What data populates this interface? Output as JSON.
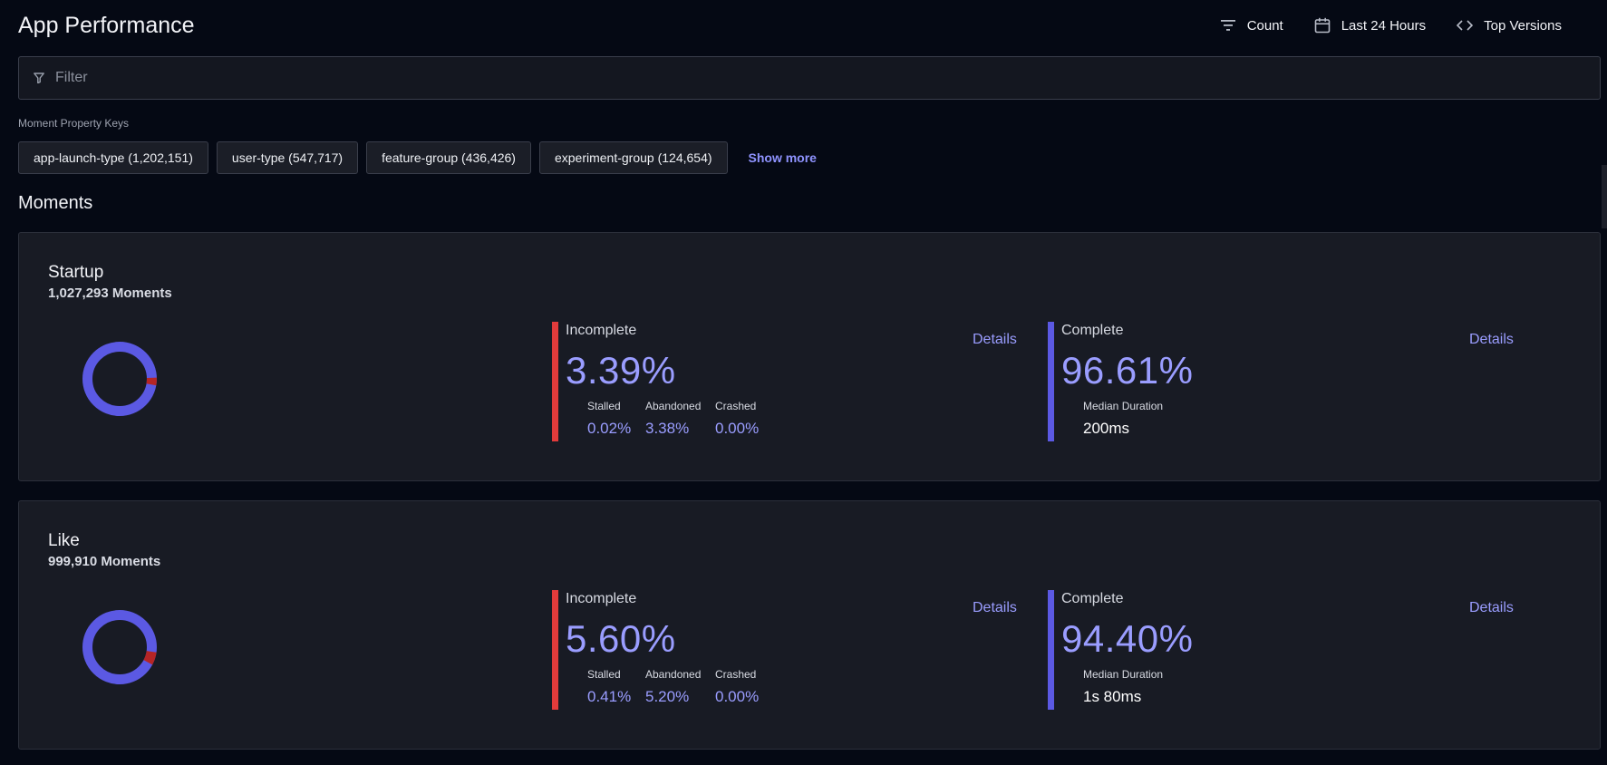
{
  "header": {
    "title": "App Performance",
    "actions": [
      {
        "label": "Count",
        "icon": "sort-lines-icon"
      },
      {
        "label": "Last 24 Hours",
        "icon": "calendar-icon"
      },
      {
        "label": "Top Versions",
        "icon": "code-brackets-icon"
      }
    ]
  },
  "filter": {
    "placeholder": "Filter",
    "value": ""
  },
  "property_keys": {
    "label": "Moment Property Keys",
    "chips": [
      "app-launch-type (1,202,151)",
      "user-type (547,717)",
      "feature-group (436,426)",
      "experiment-group (124,654)"
    ],
    "show_more": "Show more"
  },
  "moments": {
    "title": "Moments",
    "cards": [
      {
        "name": "Startup",
        "count": "1,027,293 Moments",
        "incomplete": {
          "label": "Incomplete",
          "value": "3.39%",
          "fraction": 0.0339,
          "details": "Details",
          "subs": [
            {
              "label": "Stalled",
              "value": "0.02%"
            },
            {
              "label": "Abandoned",
              "value": "3.38%"
            },
            {
              "label": "Crashed",
              "value": "0.00%"
            }
          ]
        },
        "complete": {
          "label": "Complete",
          "value": "96.61%",
          "details": "Details",
          "median_label": "Median Duration",
          "median_value": "200ms"
        }
      },
      {
        "name": "Like",
        "count": "999,910 Moments",
        "incomplete": {
          "label": "Incomplete",
          "value": "5.60%",
          "fraction": 0.056,
          "details": "Details",
          "subs": [
            {
              "label": "Stalled",
              "value": "0.41%"
            },
            {
              "label": "Abandoned",
              "value": "5.20%"
            },
            {
              "label": "Crashed",
              "value": "0.00%"
            }
          ]
        },
        "complete": {
          "label": "Complete",
          "value": "94.40%",
          "details": "Details",
          "median_label": "Median Duration",
          "median_value": "1s 80ms"
        }
      }
    ]
  },
  "colors": {
    "accent": "#5b59e3",
    "incomplete": "#e23b3b",
    "donut_incomplete": "#b52525",
    "value_text": "#9a9dff"
  }
}
